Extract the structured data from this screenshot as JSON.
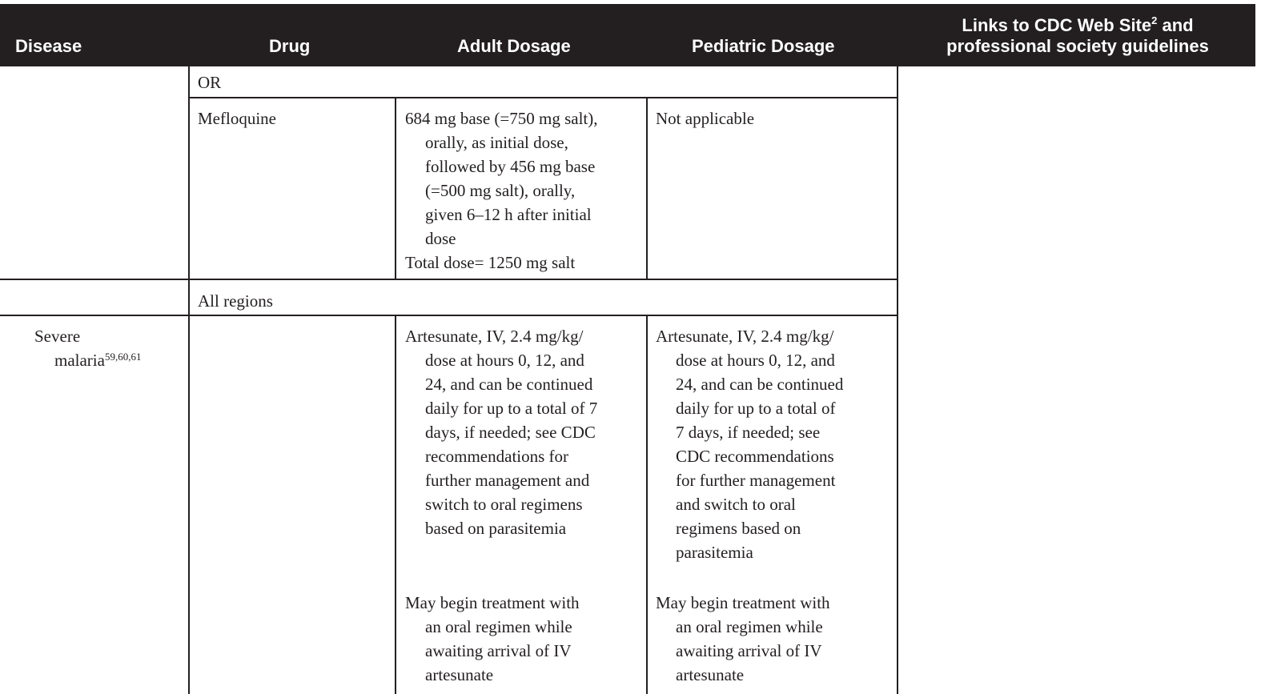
{
  "header": {
    "disease": "Disease",
    "drug": "Drug",
    "adult_dosage": "Adult Dosage",
    "pediatric_dosage": "Pediatric Dosage",
    "links_line1_pre": "Links to CDC Web Site",
    "links_sup": "2",
    "links_line1_post": " and",
    "links_line2": "professional society guidelines"
  },
  "rows": {
    "or_row": {
      "drug": "OR"
    },
    "mefloquine": {
      "drug": "Mefloquine",
      "adult_lines": [
        "684 mg base (=750 mg salt),",
        "orally, as initial dose,",
        "followed by 456 mg base",
        "(=500 mg salt), orally,",
        "given 6–12 h after initial",
        "dose"
      ],
      "adult_total": "Total dose= 1250 mg salt",
      "pediatric": "Not applicable"
    },
    "all_regions": {
      "drug": "All regions"
    },
    "severe": {
      "disease_line1": "Severe",
      "disease_line2": "malaria",
      "disease_sup": "59,60,61",
      "adult_p1_lines": [
        "Artesunate, IV, 2.4 mg/kg/",
        "dose at hours 0, 12, and",
        "24, and can be continued",
        "daily for up to a total of 7",
        "days, if needed; see CDC",
        "recommendations for",
        "further management and",
        "switch to oral regimens",
        "based on parasitemia"
      ],
      "adult_p2_lines": [
        "May begin treatment with",
        "an oral regimen while",
        "awaiting arrival of IV",
        "artesunate"
      ],
      "ped_p1_lines": [
        "Artesunate, IV, 2.4 mg/kg/",
        "dose at hours 0, 12, and",
        "24, and can be continued",
        "daily for up to a total of",
        "7 days, if needed; see",
        "CDC recommendations",
        "for further management",
        "and switch to oral",
        "regimens based on",
        "parasitemia"
      ],
      "ped_p2_lines": [
        "May begin treatment with",
        "an oral regimen while",
        "awaiting arrival of IV",
        "artesunate"
      ]
    }
  }
}
